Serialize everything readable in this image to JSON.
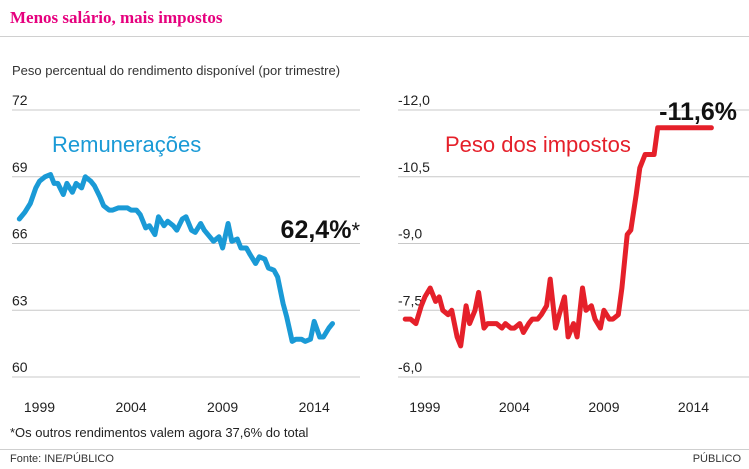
{
  "title": "Menos salário, mais impostos",
  "subtitle": "Peso percentual do rendimento disponível (por trimestre)",
  "footnote": "*Os outros rendimentos valem agora 37,6% do total",
  "source": "Fonte: INE/PÚBLICO",
  "brand": "PÚBLICO",
  "chart_data": [
    {
      "type": "line",
      "title": "Remunerações",
      "color": "#1a9ad6",
      "x_tick_labels": [
        "1999",
        "2004",
        "2009",
        "2014"
      ],
      "x_ticks": [
        1999,
        2004,
        2009,
        2014
      ],
      "xlim": [
        1997.5,
        2016.5
      ],
      "y_tick_labels": [
        "72",
        "69",
        "66",
        "63",
        "60"
      ],
      "y_ticks": [
        72,
        69,
        66,
        63,
        60
      ],
      "ylim": [
        60,
        72
      ],
      "end_label": "62,4%",
      "end_label_marker": "*",
      "x": [
        1997.9,
        1998.2,
        1998.5,
        1998.8,
        1999.0,
        1999.3,
        1999.6,
        1999.8,
        2000.0,
        2000.3,
        2000.5,
        2000.8,
        2001.0,
        2001.3,
        2001.5,
        2001.8,
        2002.0,
        2002.3,
        2002.5,
        2002.8,
        2003.0,
        2003.3,
        2003.5,
        2003.8,
        2004.0,
        2004.3,
        2004.5,
        2004.8,
        2005.0,
        2005.3,
        2005.5,
        2005.8,
        2006.0,
        2006.3,
        2006.5,
        2006.8,
        2007.0,
        2007.3,
        2007.5,
        2007.8,
        2008.0,
        2008.3,
        2008.5,
        2008.8,
        2009.0,
        2009.3,
        2009.5,
        2009.8,
        2010.0,
        2010.3,
        2010.5,
        2010.8,
        2011.0,
        2011.3,
        2011.5,
        2011.8,
        2012.0,
        2012.3,
        2012.5,
        2012.8,
        2013.0,
        2013.3,
        2013.5,
        2013.8,
        2014.0,
        2014.3,
        2014.5,
        2014.8,
        2015.0
      ],
      "values": [
        67.1,
        67.4,
        67.8,
        68.5,
        68.8,
        69.0,
        69.1,
        68.7,
        68.7,
        68.2,
        68.7,
        68.3,
        68.7,
        68.5,
        69.0,
        68.8,
        68.6,
        68.1,
        67.7,
        67.5,
        67.5,
        67.6,
        67.6,
        67.6,
        67.5,
        67.5,
        67.3,
        66.7,
        66.8,
        66.4,
        67.2,
        66.8,
        67.0,
        66.8,
        66.6,
        67.1,
        67.2,
        66.6,
        66.5,
        66.9,
        66.6,
        66.3,
        66.1,
        66.3,
        65.8,
        66.9,
        66.1,
        66.2,
        65.8,
        65.8,
        65.5,
        65.1,
        65.4,
        65.3,
        64.9,
        64.8,
        64.5,
        63.3,
        62.7,
        61.6,
        61.7,
        61.7,
        61.6,
        61.7,
        62.5,
        61.8,
        61.8,
        62.2,
        62.4
      ]
    },
    {
      "type": "line",
      "title": "Peso dos impostos",
      "color": "#e5202a",
      "x_tick_labels": [
        "1999",
        "2004",
        "2009",
        "2014"
      ],
      "x_ticks": [
        1999,
        2004,
        2009,
        2014
      ],
      "xlim": [
        1997.5,
        2017.1
      ],
      "y_tick_labels": [
        "-12,0",
        "-10,5",
        "-9,0",
        "-7,5",
        "-6,0"
      ],
      "y_ticks": [
        -12.0,
        -10.5,
        -9.0,
        -7.5,
        -6.0
      ],
      "ylim": [
        -12.0,
        -6.0
      ],
      "end_label": "-11,6%",
      "x": [
        1997.9,
        1998.2,
        1998.5,
        1998.8,
        1999.0,
        1999.3,
        1999.6,
        1999.8,
        2000.0,
        2000.3,
        2000.5,
        2000.8,
        2001.0,
        2001.3,
        2001.5,
        2001.8,
        2002.0,
        2002.3,
        2002.5,
        2002.8,
        2003.0,
        2003.3,
        2003.5,
        2003.8,
        2004.0,
        2004.3,
        2004.5,
        2004.8,
        2005.0,
        2005.3,
        2005.5,
        2005.8,
        2006.0,
        2006.3,
        2006.5,
        2006.8,
        2007.0,
        2007.3,
        2007.5,
        2007.8,
        2008.0,
        2008.3,
        2008.5,
        2008.8,
        2009.0,
        2009.3,
        2009.5,
        2009.8,
        2010.0,
        2010.3,
        2010.5,
        2010.8,
        2011.0,
        2011.3,
        2011.5,
        2011.8,
        2012.0,
        2012.3,
        2012.5,
        2012.8,
        2013.0,
        2013.3,
        2013.5,
        2013.8,
        2014.0,
        2014.3,
        2014.5,
        2014.8,
        2015.0
      ],
      "values": [
        -7.3,
        -7.3,
        -7.2,
        -7.6,
        -7.8,
        -8.0,
        -7.7,
        -7.8,
        -7.5,
        -7.4,
        -7.5,
        -6.9,
        -6.7,
        -7.6,
        -7.2,
        -7.5,
        -7.9,
        -7.1,
        -7.2,
        -7.2,
        -7.2,
        -7.1,
        -7.2,
        -7.1,
        -7.1,
        -7.2,
        -7.0,
        -7.2,
        -7.3,
        -7.3,
        -7.4,
        -7.6,
        -8.2,
        -7.1,
        -7.4,
        -7.8,
        -6.9,
        -7.2,
        -6.9,
        -8.0,
        -7.5,
        -7.6,
        -7.3,
        -7.1,
        -7.5,
        -7.3,
        -7.3,
        -7.4,
        -8.0,
        -9.2,
        -9.3,
        -10.1,
        -10.7,
        -11.0,
        -11.0,
        -11.0,
        -11.6,
        -11.6,
        -11.6,
        -11.6,
        -11.6,
        -11.6,
        -11.6,
        -11.6,
        -11.6,
        -11.6,
        -11.6,
        -11.6,
        -11.6
      ]
    }
  ]
}
